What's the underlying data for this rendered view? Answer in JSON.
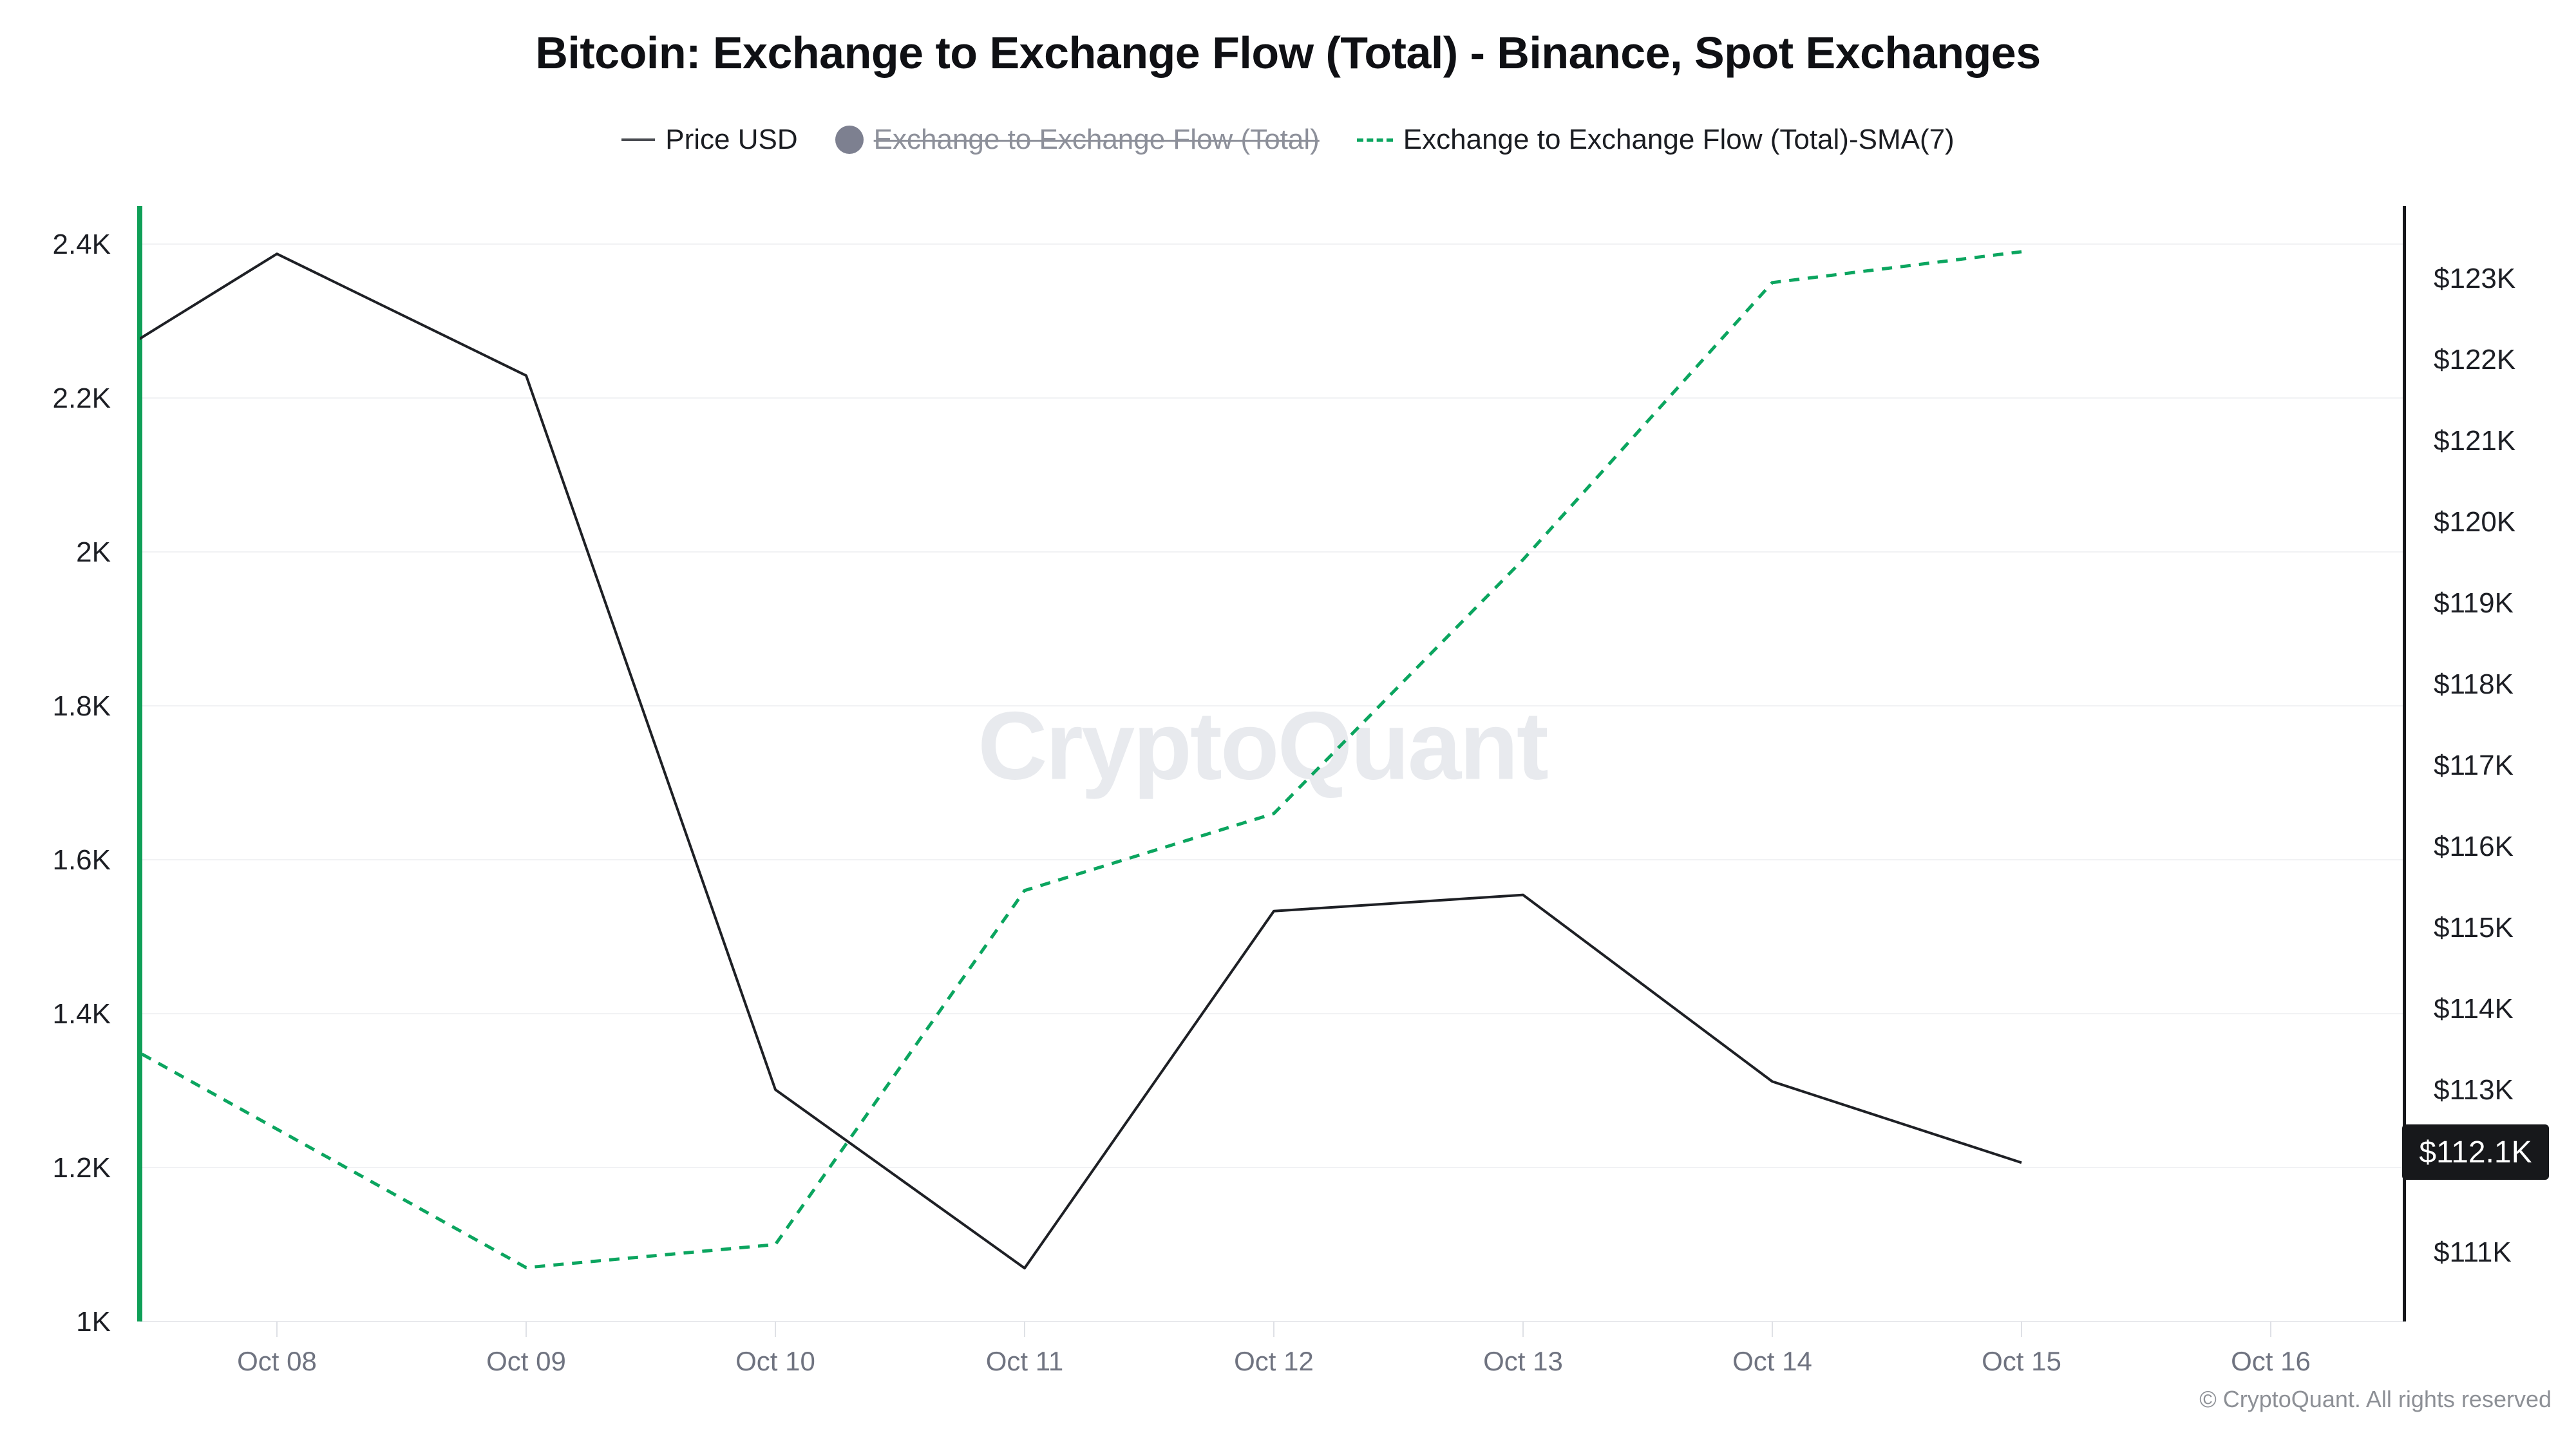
{
  "page": {
    "title": "Bitcoin: Exchange to Exchange Flow (Total) - Binance, Spot Exchanges",
    "watermark": "CryptoQuant",
    "footer": "© CryptoQuant. All rights reserved"
  },
  "legend": {
    "items": [
      {
        "label": "Price USD",
        "marker": "line-icon",
        "color": "#1e2025",
        "enabled": true
      },
      {
        "label": "Exchange to Exchange Flow (Total)",
        "marker": "circle-icon",
        "color": "#7d8090",
        "enabled": false
      },
      {
        "label": "Exchange to Exchange Flow (Total)-SMA(7)",
        "marker": "dashed-line-icon",
        "color": "#0ba55f",
        "enabled": true
      }
    ]
  },
  "chart_data": {
    "type": "line",
    "title": "Bitcoin: Exchange to Exchange Flow (Total) - Binance, Spot Exchanges",
    "x_axis_labels": [
      "Oct 08",
      "Oct 09",
      "Oct 10",
      "Oct 11",
      "Oct 12",
      "Oct 13",
      "Oct 14",
      "Oct 15",
      "Oct 16"
    ],
    "left_axis": {
      "title": "Exchange to Exchange Flow (Total)",
      "range": [
        1.0,
        2.4
      ],
      "axis_color": "#0f9f57",
      "ticks": [
        {
          "value": 1.0,
          "label": "1K"
        },
        {
          "value": 1.2,
          "label": "1.2K"
        },
        {
          "value": 1.4,
          "label": "1.4K"
        },
        {
          "value": 1.6,
          "label": "1.6K"
        },
        {
          "value": 1.8,
          "label": "1.8K"
        },
        {
          "value": 2.0,
          "label": "2K"
        },
        {
          "value": 2.2,
          "label": "2.2K"
        },
        {
          "value": 2.4,
          "label": "2.4K"
        }
      ]
    },
    "right_axis": {
      "title": "Price USD",
      "range_thousands": [
        111,
        123
      ],
      "axis_color": "#17181c",
      "ticks": [
        {
          "value": 123,
          "label": "$123K"
        },
        {
          "value": 122,
          "label": "$122K"
        },
        {
          "value": 121,
          "label": "$121K"
        },
        {
          "value": 120,
          "label": "$120K"
        },
        {
          "value": 119,
          "label": "$119K"
        },
        {
          "value": 118,
          "label": "$118K"
        },
        {
          "value": 117,
          "label": "$117K"
        },
        {
          "value": 116,
          "label": "$116K"
        },
        {
          "value": 115,
          "label": "$115K"
        },
        {
          "value": 114,
          "label": "$114K"
        },
        {
          "value": 113,
          "label": "$113K"
        },
        {
          "value": 111,
          "label": "$111K"
        }
      ]
    },
    "series": [
      {
        "name": "Price USD",
        "axis": "right",
        "color": "#1e2025",
        "line_style": "solid",
        "visible": true,
        "unit": "USD thousands",
        "points": [
          {
            "x": "Oct 07",
            "y": 121.4
          },
          {
            "x": "Oct 08",
            "y": 123.3
          },
          {
            "x": "Oct 09",
            "y": 121.8
          },
          {
            "x": "Oct 10",
            "y": 113.0
          },
          {
            "x": "Oct 11",
            "y": 110.8
          },
          {
            "x": "Oct 12",
            "y": 115.2
          },
          {
            "x": "Oct 13",
            "y": 115.4
          },
          {
            "x": "Oct 14",
            "y": 113.1
          },
          {
            "x": "Oct 15",
            "y": 112.1
          }
        ]
      },
      {
        "name": "Exchange to Exchange Flow (Total)",
        "axis": "left",
        "color": "#7d8090",
        "line_style": "solid",
        "visible": false,
        "unit": "BTC thousands",
        "points": []
      },
      {
        "name": "Exchange to Exchange Flow (Total)-SMA(7)",
        "axis": "left",
        "color": "#0ba55f",
        "line_style": "dashed",
        "visible": true,
        "unit": "BTC thousands",
        "points": [
          {
            "x": "Oct 07",
            "y": 1.43
          },
          {
            "x": "Oct 08",
            "y": 1.25
          },
          {
            "x": "Oct 09",
            "y": 1.07
          },
          {
            "x": "Oct 10",
            "y": 1.1
          },
          {
            "x": "Oct 11",
            "y": 1.56
          },
          {
            "x": "Oct 12",
            "y": 1.66
          },
          {
            "x": "Oct 13",
            "y": 1.99
          },
          {
            "x": "Oct 14",
            "y": 2.35
          },
          {
            "x": "Oct 15",
            "y": 2.39
          }
        ]
      }
    ],
    "current_price_label": "$112.1K",
    "current_price_value_thousands": 112.1,
    "grid": "horizontal-only",
    "legend_position": "top-center"
  }
}
